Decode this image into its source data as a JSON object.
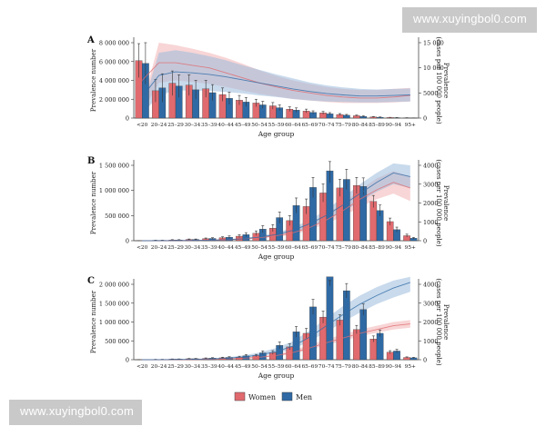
{
  "watermarks": {
    "top": "www.xuyingbol0.com",
    "bottom": "www.xuyingbol0.com"
  },
  "colors": {
    "women": "#e06a6e",
    "men": "#2f6aa5",
    "women_band": "#f2b3b5",
    "men_band": "#9bbbdc"
  },
  "legend": {
    "women": "Women",
    "men": "Men"
  },
  "chart_data": [
    {
      "panel": "A",
      "type": "bar",
      "xlabel": "Age group",
      "ylabel": "Prevalence number",
      "y2label": "Prevalence\n(cases per 100 000 people)",
      "ylim": [
        0,
        8000000
      ],
      "y2lim": [
        0,
        15000
      ],
      "yticks": [
        "8 000 000",
        "6 000 000",
        "4 000 000",
        "2 000 000",
        "0"
      ],
      "y2ticks": [
        "15 000",
        "10 000",
        "5000",
        "0"
      ],
      "categories": [
        "<20",
        "20–24",
        "25–29",
        "30–34",
        "35–39",
        "40–44",
        "45–49",
        "50–54",
        "55–59",
        "60–64",
        "65–69",
        "70–74",
        "75–79",
        "80–84",
        "85–89",
        "90–94",
        "95+"
      ],
      "series": [
        {
          "name": "Women",
          "values": [
            6100000,
            2900000,
            3700000,
            3500000,
            3100000,
            2500000,
            1900000,
            1600000,
            1300000,
            950000,
            750000,
            550000,
            380000,
            250000,
            120000,
            60000,
            30000
          ],
          "errors": [
            1800000,
            1200000,
            1300000,
            1100000,
            900000,
            700000,
            500000,
            400000,
            350000,
            250000,
            200000,
            150000,
            100000,
            70000,
            40000,
            20000,
            10000
          ]
        },
        {
          "name": "Men",
          "values": [
            5800000,
            3200000,
            3400000,
            3000000,
            2700000,
            2100000,
            1700000,
            1400000,
            1100000,
            850000,
            600000,
            450000,
            300000,
            180000,
            90000,
            40000,
            15000
          ],
          "errors": [
            2200000,
            1500000,
            1200000,
            1000000,
            850000,
            650000,
            480000,
            380000,
            300000,
            230000,
            170000,
            130000,
            90000,
            60000,
            30000,
            15000,
            8000
          ]
        }
      ],
      "rate_series": [
        {
          "name": "Women",
          "values": [
            7500,
            11000,
            11000,
            10500,
            10000,
            9000,
            8000,
            7000,
            6200,
            5500,
            5000,
            4500,
            4200,
            4000,
            4000,
            4200,
            4500
          ],
          "band": [
            [
              1200,
              2400
            ],
            [
              7000,
              15000
            ],
            [
              7500,
              14500
            ],
            [
              7200,
              13800
            ],
            [
              6800,
              13000
            ],
            [
              6200,
              12000
            ],
            [
              5500,
              10800
            ],
            [
              4800,
              9500
            ],
            [
              4300,
              8400
            ],
            [
              3800,
              7500
            ],
            [
              3500,
              6800
            ],
            [
              3200,
              6200
            ],
            [
              3000,
              5800
            ],
            [
              3000,
              5600
            ],
            [
              3000,
              5600
            ],
            [
              3100,
              5800
            ],
            [
              3300,
              6000
            ]
          ]
        },
        {
          "name": "Men",
          "values": [
            4200,
            8500,
            9200,
            9000,
            8700,
            8200,
            7600,
            7000,
            6400,
            5800,
            5300,
            4900,
            4600,
            4400,
            4400,
            4500,
            4600
          ],
          "band": [
            [
              800,
              1800
            ],
            [
              4500,
              13000
            ],
            [
              5500,
              13500
            ],
            [
              5500,
              13000
            ],
            [
              5400,
              12300
            ],
            [
              5200,
              11500
            ],
            [
              4900,
              10500
            ],
            [
              4500,
              9600
            ],
            [
              4200,
              8700
            ],
            [
              3800,
              7900
            ],
            [
              3500,
              7100
            ],
            [
              3300,
              6500
            ],
            [
              3200,
              6100
            ],
            [
              3100,
              5800
            ],
            [
              3100,
              5700
            ],
            [
              3200,
              5800
            ],
            [
              3300,
              5900
            ]
          ]
        }
      ]
    },
    {
      "panel": "B",
      "type": "bar",
      "xlabel": "Age group",
      "ylabel": "Prevalence number",
      "y2label": "Prevalence\n(cases per 100 000 people)",
      "ylim": [
        0,
        1500000
      ],
      "y2lim": [
        0,
        4000
      ],
      "yticks": [
        "1 500 000",
        "1 000 000",
        "500 000",
        "0"
      ],
      "y2ticks": [
        "4000",
        "3000",
        "2000",
        "1000",
        "0"
      ],
      "categories": [
        "<20",
        "20–24",
        "25–29",
        "30–34",
        "35–39",
        "40–44",
        "45–49",
        "50–54",
        "55–59",
        "60–64",
        "65–69",
        "70–74",
        "75–79",
        "80–84",
        "85–89",
        "90–94",
        "95+"
      ],
      "series": [
        {
          "name": "Women",
          "values": [
            2000,
            8000,
            15000,
            25000,
            40000,
            60000,
            90000,
            150000,
            250000,
            400000,
            680000,
            950000,
            1050000,
            1100000,
            780000,
            380000,
            100000
          ],
          "errors": [
            1000,
            3000,
            6000,
            9000,
            14000,
            20000,
            30000,
            45000,
            70000,
            100000,
            150000,
            180000,
            170000,
            160000,
            120000,
            70000,
            30000
          ]
        },
        {
          "name": "Men",
          "values": [
            2000,
            8000,
            15000,
            25000,
            45000,
            70000,
            120000,
            230000,
            460000,
            700000,
            1060000,
            1390000,
            1220000,
            1080000,
            600000,
            220000,
            50000
          ],
          "errors": [
            1000,
            3000,
            6000,
            9000,
            15000,
            25000,
            40000,
            70000,
            110000,
            150000,
            200000,
            240000,
            200000,
            170000,
            110000,
            50000,
            15000
          ]
        }
      ],
      "rate_series": [
        {
          "name": "Women",
          "values": [
            2,
            4,
            8,
            15,
            28,
            50,
            90,
            160,
            260,
            420,
            700,
            1100,
            1600,
            2200,
            2700,
            3100,
            2800
          ],
          "band": [
            [
              1,
              4
            ],
            [
              2,
              8
            ],
            [
              5,
              14
            ],
            [
              10,
              24
            ],
            [
              18,
              42
            ],
            [
              35,
              70
            ],
            [
              65,
              120
            ],
            [
              120,
              210
            ],
            [
              200,
              340
            ],
            [
              330,
              540
            ],
            [
              560,
              900
            ],
            [
              900,
              1400
            ],
            [
              1300,
              2000
            ],
            [
              1800,
              2700
            ],
            [
              2200,
              3300
            ],
            [
              2500,
              3700
            ],
            [
              2100,
              3400
            ]
          ]
        },
        {
          "name": "Men",
          "values": [
            2,
            4,
            8,
            16,
            30,
            55,
            100,
            190,
            330,
            550,
            900,
            1350,
            1900,
            2500,
            3100,
            3600,
            3400
          ],
          "band": [
            [
              1,
              4
            ],
            [
              2,
              8
            ],
            [
              5,
              14
            ],
            [
              10,
              25
            ],
            [
              20,
              45
            ],
            [
              40,
              75
            ],
            [
              75,
              130
            ],
            [
              150,
              250
            ],
            [
              260,
              420
            ],
            [
              440,
              700
            ],
            [
              720,
              1100
            ],
            [
              1100,
              1650
            ],
            [
              1550,
              2300
            ],
            [
              2050,
              3000
            ],
            [
              2600,
              3600
            ],
            [
              3000,
              4100
            ],
            [
              2800,
              4000
            ]
          ]
        }
      ]
    },
    {
      "panel": "C",
      "type": "bar",
      "xlabel": "Age group",
      "ylabel": "Prevalence number",
      "y2label": "Prevalence\n(cases per 100 000 people)",
      "ylim": [
        0,
        2000000
      ],
      "y2lim": [
        0,
        4000
      ],
      "yticks": [
        "2 000 000",
        "1 500 000",
        "1 000 000",
        "500 000",
        "0"
      ],
      "y2ticks": [
        "4000",
        "3000",
        "2000",
        "1000",
        "0"
      ],
      "categories": [
        "<20",
        "20–24",
        "25–29",
        "30–34",
        "35–39",
        "40–44",
        "45–49",
        "50–54",
        "55–59",
        "60–64",
        "65–69",
        "70–74",
        "75–79",
        "80–84",
        "85–89",
        "90–94",
        "95+"
      ],
      "series": [
        {
          "name": "Women",
          "values": [
            2000,
            8000,
            15000,
            25000,
            35000,
            50000,
            70000,
            110000,
            190000,
            340000,
            700000,
            1130000,
            1050000,
            800000,
            550000,
            200000,
            60000
          ],
          "errors": [
            1000,
            3000,
            5000,
            8000,
            12000,
            16000,
            22000,
            30000,
            50000,
            80000,
            130000,
            160000,
            140000,
            110000,
            80000,
            40000,
            15000
          ]
        },
        {
          "name": "Men",
          "values": [
            2000,
            8000,
            15000,
            25000,
            40000,
            60000,
            100000,
            180000,
            380000,
            740000,
            1400000,
            2200000,
            1830000,
            1330000,
            700000,
            230000,
            50000
          ],
          "errors": [
            1000,
            3000,
            6000,
            9000,
            14000,
            20000,
            35000,
            55000,
            90000,
            140000,
            200000,
            240000,
            190000,
            150000,
            90000,
            45000,
            12000
          ]
        }
      ],
      "rate_series": [
        {
          "name": "Women",
          "values": [
            1,
            3,
            6,
            12,
            22,
            40,
            75,
            130,
            220,
            380,
            620,
            900,
            1150,
            1400,
            1600,
            1800,
            1900
          ],
          "band": [
            [
              1,
              3
            ],
            [
              2,
              6
            ],
            [
              4,
              11
            ],
            [
              8,
              20
            ],
            [
              16,
              36
            ],
            [
              30,
              64
            ],
            [
              58,
              112
            ],
            [
              100,
              180
            ],
            [
              180,
              300
            ],
            [
              310,
              500
            ],
            [
              520,
              780
            ],
            [
              780,
              1080
            ],
            [
              1000,
              1350
            ],
            [
              1250,
              1600
            ],
            [
              1430,
              1800
            ],
            [
              1600,
              2000
            ],
            [
              1700,
              2100
            ]
          ]
        },
        {
          "name": "Men",
          "values": [
            2,
            5,
            10,
            20,
            40,
            75,
            140,
            250,
            430,
            720,
            1200,
            1800,
            2400,
            2950,
            3400,
            3800,
            4100
          ],
          "band": [
            [
              1,
              4
            ],
            [
              3,
              9
            ],
            [
              6,
              18
            ],
            [
              14,
              34
            ],
            [
              28,
              66
            ],
            [
              55,
              120
            ],
            [
              105,
              220
            ],
            [
              190,
              380
            ],
            [
              330,
              620
            ],
            [
              570,
              980
            ],
            [
              970,
              1550
            ],
            [
              1470,
              2200
            ],
            [
              2000,
              2850
            ],
            [
              2500,
              3400
            ],
            [
              2950,
              3850
            ],
            [
              3300,
              4200
            ],
            [
              3600,
              4400
            ]
          ]
        }
      ]
    }
  ]
}
